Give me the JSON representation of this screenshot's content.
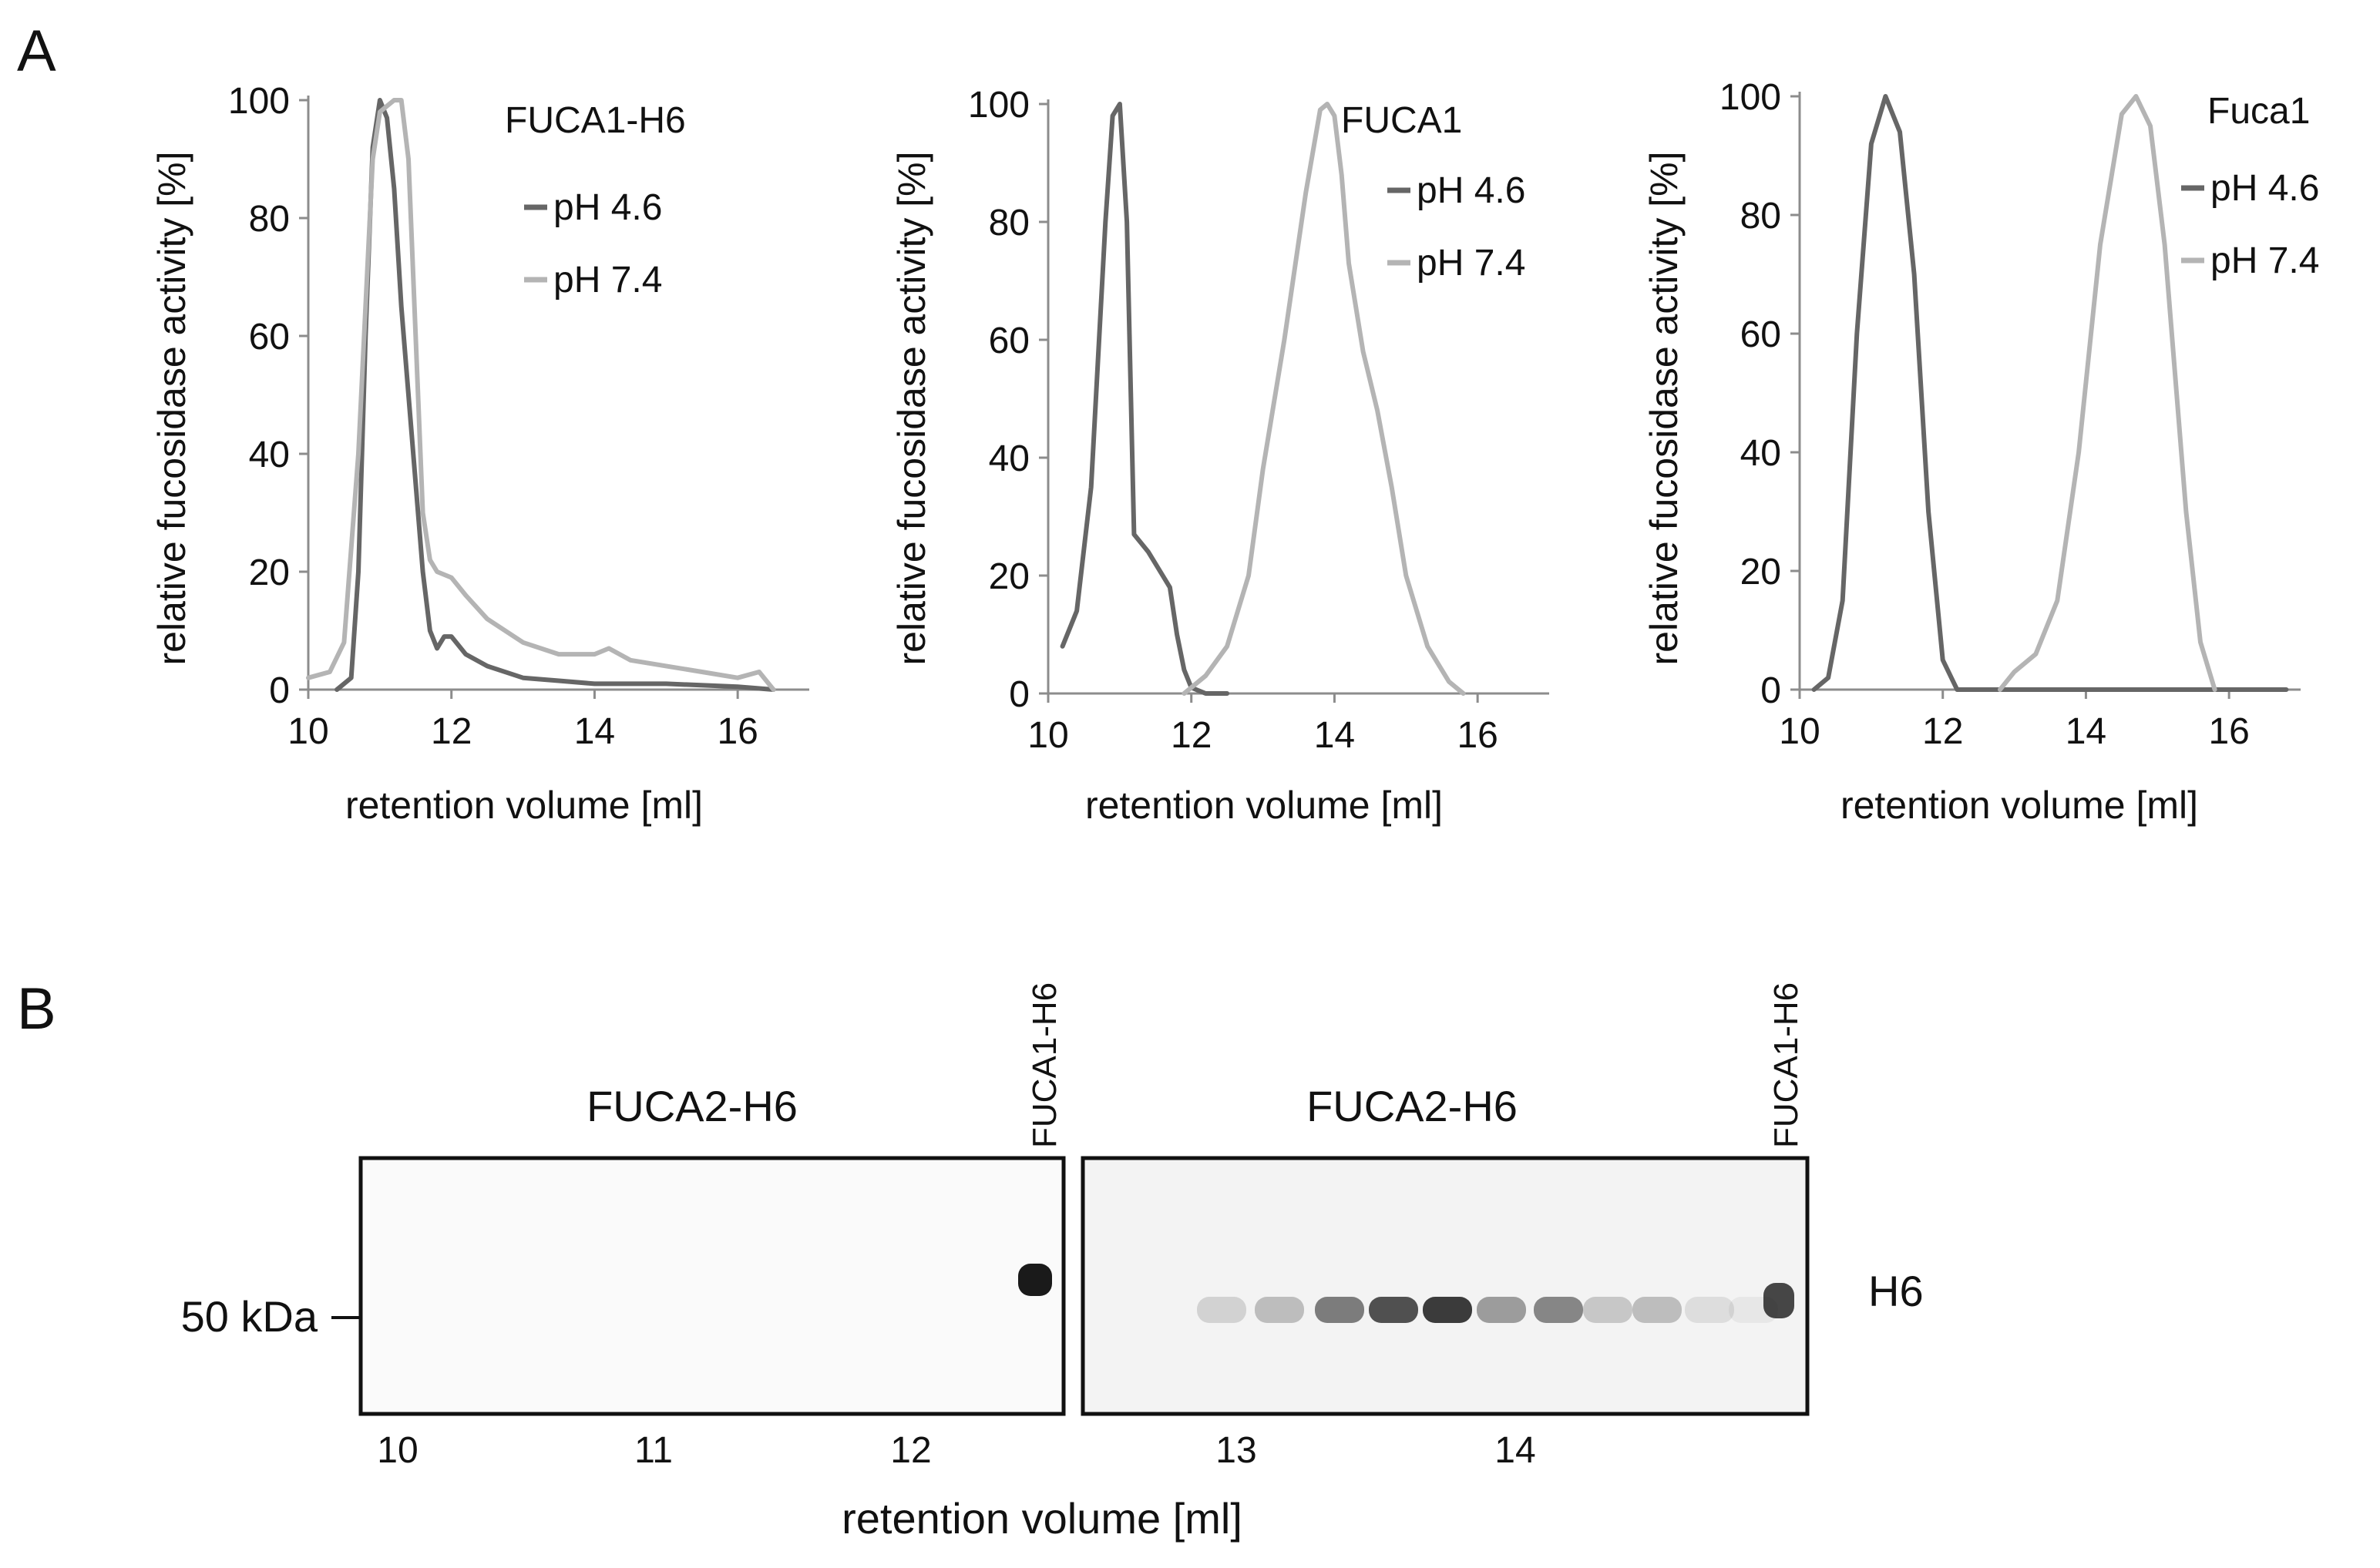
{
  "panels": {
    "a_label": "A",
    "b_label": "B"
  },
  "colors": {
    "pH_4_6": "#666666",
    "pH_7_4": "#b4b4b4",
    "text": "#111111",
    "band": "#1a1a1a"
  },
  "chart_data": [
    {
      "type": "line",
      "title": "FUCA1-H6",
      "xlabel": "retention volume [ml]",
      "ylabel": "relative fucosidase activity [%]",
      "xlim": [
        10,
        17
      ],
      "ylim": [
        0,
        100
      ],
      "xticks": [
        10,
        12,
        14,
        16
      ],
      "yticks": [
        0,
        20,
        40,
        60,
        80,
        100
      ],
      "grid": false,
      "legend_position": "top-right",
      "series": [
        {
          "name": "pH 4.6",
          "color": "#666666",
          "x": [
            10.4,
            10.6,
            10.7,
            10.8,
            10.9,
            11.0,
            11.1,
            11.2,
            11.3,
            11.5,
            11.6,
            11.7,
            11.8,
            11.9,
            12.0,
            12.2,
            12.5,
            13.0,
            13.5,
            14.0,
            15.0,
            16.0,
            16.5
          ],
          "y": [
            0,
            2,
            20,
            60,
            92,
            100,
            97,
            85,
            65,
            35,
            20,
            10,
            7,
            9,
            9,
            6,
            4,
            2,
            1.5,
            1,
            1,
            0.5,
            0
          ]
        },
        {
          "name": "pH 7.4",
          "color": "#b4b4b4",
          "x": [
            10.0,
            10.3,
            10.5,
            10.7,
            10.9,
            11.0,
            11.1,
            11.2,
            11.3,
            11.4,
            11.5,
            11.6,
            11.7,
            11.8,
            12.0,
            12.2,
            12.5,
            13.0,
            13.5,
            14.0,
            14.2,
            14.5,
            15.0,
            15.5,
            16.0,
            16.3,
            16.5
          ],
          "y": [
            2,
            3,
            8,
            40,
            90,
            98,
            99,
            100,
            100,
            90,
            60,
            30,
            22,
            20,
            19,
            16,
            12,
            8,
            6,
            6,
            7,
            5,
            4,
            3,
            2,
            3,
            0
          ]
        }
      ]
    },
    {
      "type": "line",
      "title": "FUCA1",
      "xlabel": "retention volume [ml]",
      "ylabel": "relative fucosidase activity [%]",
      "xlim": [
        10,
        17
      ],
      "ylim": [
        0,
        100
      ],
      "xticks": [
        10,
        12,
        14,
        16
      ],
      "yticks": [
        0,
        20,
        40,
        60,
        80,
        100
      ],
      "grid": false,
      "legend_position": "top-right",
      "series": [
        {
          "name": "pH 4.6",
          "color": "#666666",
          "x": [
            10.2,
            10.4,
            10.6,
            10.8,
            10.9,
            11.0,
            11.1,
            11.2,
            11.4,
            11.6,
            11.7,
            11.8,
            11.9,
            12.0,
            12.2,
            12.5
          ],
          "y": [
            8,
            14,
            35,
            80,
            98,
            100,
            80,
            27,
            24,
            20,
            18,
            10,
            4,
            1,
            0,
            0
          ]
        },
        {
          "name": "pH 7.4",
          "color": "#b4b4b4",
          "x": [
            11.9,
            12.2,
            12.5,
            12.8,
            13.0,
            13.3,
            13.6,
            13.8,
            13.9,
            14.0,
            14.1,
            14.2,
            14.4,
            14.6,
            14.8,
            15.0,
            15.3,
            15.6,
            15.8
          ],
          "y": [
            0,
            3,
            8,
            20,
            38,
            60,
            85,
            99,
            100,
            98,
            88,
            73,
            58,
            48,
            35,
            20,
            8,
            2,
            0
          ]
        }
      ]
    },
    {
      "type": "line",
      "title": "Fuca1",
      "xlabel": "retention volume [ml]",
      "ylabel": "relative fucosidase activity [%]",
      "xlim": [
        10,
        17
      ],
      "ylim": [
        0,
        100
      ],
      "xticks": [
        10,
        12,
        14,
        16
      ],
      "yticks": [
        0,
        20,
        40,
        60,
        80,
        100
      ],
      "grid": false,
      "legend_position": "top-right",
      "series": [
        {
          "name": "pH 4.6",
          "color": "#666666",
          "x": [
            10.2,
            10.4,
            10.6,
            10.8,
            11.0,
            11.2,
            11.4,
            11.6,
            11.8,
            12.0,
            12.2,
            13.0,
            14.0,
            15.0,
            16.0,
            16.8
          ],
          "y": [
            0,
            2,
            15,
            60,
            92,
            100,
            94,
            70,
            30,
            5,
            0,
            0,
            0,
            0,
            0,
            0
          ]
        },
        {
          "name": "pH 7.4",
          "color": "#b4b4b4",
          "x": [
            12.8,
            13.0,
            13.3,
            13.6,
            13.9,
            14.2,
            14.5,
            14.7,
            14.9,
            15.1,
            15.4,
            15.6,
            15.8
          ],
          "y": [
            0,
            3,
            6,
            15,
            40,
            75,
            97,
            100,
            95,
            75,
            30,
            8,
            0
          ]
        }
      ]
    }
  ],
  "blot": {
    "left_title": "FUCA2-H6",
    "right_title": "FUCA2-H6",
    "control_label_left": "FUCA1-H6",
    "control_label_right": "FUCA1-H6",
    "marker_label": "50 kDa",
    "antibody_label": "H6",
    "xlabel": "retention volume [ml]",
    "xticks_left": [
      "10",
      "11",
      "12"
    ],
    "xticks_right": [
      "13",
      "14"
    ],
    "left_band_intensity": [
      0,
      0,
      0,
      0,
      0,
      0,
      0,
      0,
      0,
      0,
      0,
      0,
      1.0
    ],
    "right_band_intensity": [
      0.15,
      0.25,
      0.55,
      0.75,
      0.85,
      0.4,
      0.5,
      0.2,
      0.25,
      0.1,
      0.05,
      0.8
    ]
  }
}
